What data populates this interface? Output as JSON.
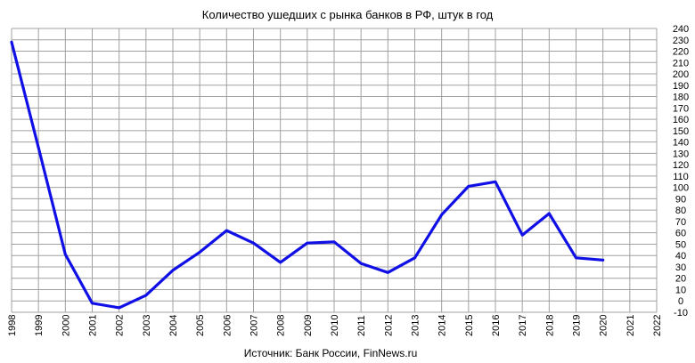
{
  "chart_data": {
    "type": "line",
    "title": "Количество  ушедших  с рынка  банков  в РФ, штук в год",
    "source": "Источник: Банк России, FinNews.ru",
    "xlim": [
      1998,
      2022
    ],
    "ylim": [
      -10,
      240
    ],
    "x_ticks": [
      1998,
      1999,
      2000,
      2001,
      2002,
      2003,
      2004,
      2005,
      2006,
      2007,
      2008,
      2009,
      2010,
      2011,
      2012,
      2013,
      2014,
      2015,
      2016,
      2017,
      2018,
      2019,
      2020,
      2021,
      2022
    ],
    "y_ticks": [
      -10,
      0,
      10,
      20,
      30,
      40,
      50,
      60,
      70,
      80,
      90,
      100,
      110,
      120,
      130,
      140,
      150,
      160,
      170,
      180,
      190,
      200,
      210,
      220,
      230,
      240
    ],
    "grid": true,
    "y_axis_side": "right",
    "series": [
      {
        "color": "#1010e6",
        "x": [
          1998,
          1999,
          2000,
          2001,
          2002,
          2003,
          2004,
          2005,
          2006,
          2007,
          2008,
          2009,
          2010,
          2011,
          2012,
          2013,
          2014,
          2015,
          2016,
          2017,
          2018,
          2019,
          2020
        ],
        "y": [
          228,
          135,
          41,
          -2,
          -6,
          5,
          27,
          43,
          62,
          51,
          34,
          51,
          52,
          33,
          25,
          38,
          76,
          101,
          105,
          58,
          77,
          38,
          36
        ]
      }
    ]
  }
}
